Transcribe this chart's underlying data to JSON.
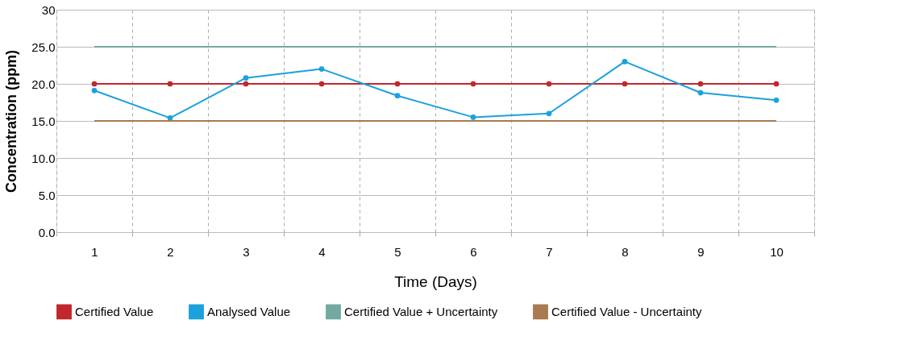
{
  "chart_data": {
    "type": "line",
    "xlabel": "Time (Days)",
    "ylabel": "Concentration (ppm)",
    "categories": [
      "1",
      "2",
      "3",
      "4",
      "5",
      "6",
      "7",
      "8",
      "9",
      "10"
    ],
    "series": [
      {
        "name": "Certified Value",
        "color": "#c1272d",
        "marker": "circle",
        "values": [
          20,
          20,
          20,
          20,
          20,
          20,
          20,
          20,
          20,
          20
        ]
      },
      {
        "name": "Analysed Value",
        "color": "#1ba1dc",
        "marker": "circle",
        "values": [
          19.1,
          15.4,
          20.8,
          22.0,
          18.4,
          15.5,
          16.0,
          23.0,
          18.8,
          17.8
        ]
      },
      {
        "name": "Certified Value + Uncertainty",
        "color": "#72a9a0",
        "marker": "none",
        "values": [
          25,
          25,
          25,
          25,
          25,
          25,
          25,
          25,
          25,
          25
        ]
      },
      {
        "name": "Certified Value - Uncertainty",
        "color": "#a87b50",
        "marker": "none",
        "values": [
          15,
          15,
          15,
          15,
          15,
          15,
          15,
          15,
          15,
          15
        ]
      }
    ],
    "ylim": [
      0,
      30
    ],
    "yticks": [
      {
        "value": 0,
        "label": "0.0"
      },
      {
        "value": 5,
        "label": "5.0"
      },
      {
        "value": 10,
        "label": "10.0"
      },
      {
        "value": 15,
        "label": "15.0"
      },
      {
        "value": 20,
        "label": "20.0"
      },
      {
        "value": 25,
        "label": "25.0"
      },
      30
    ],
    "grid": true,
    "legend": "bottom",
    "line_style": "solid"
  }
}
